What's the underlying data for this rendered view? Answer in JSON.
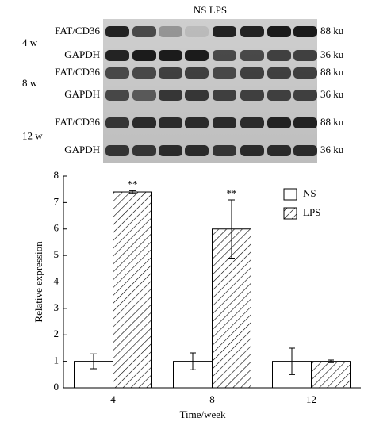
{
  "blot": {
    "header": "NS LPS",
    "groups": [
      {
        "label": "4 w",
        "rows": [
          {
            "name": "FAT/CD36",
            "size": "88 ku"
          },
          {
            "name": "GAPDH",
            "size": "36 ku"
          }
        ]
      },
      {
        "label": "8 w",
        "rows": [
          {
            "name": "FAT/CD36",
            "size": "88 ku"
          },
          {
            "name": "GAPDH",
            "size": "36 ku"
          }
        ]
      },
      {
        "label": "12 w",
        "rows": [
          {
            "name": "FAT/CD36",
            "size": "88 ku"
          },
          {
            "name": "GAPDH",
            "size": "36 ku"
          }
        ]
      }
    ]
  },
  "chart_data": {
    "type": "bar",
    "x_label": "Time/week",
    "y_label": "Relative expression",
    "categories": [
      "4",
      "8",
      "12"
    ],
    "series": [
      {
        "name": "NS",
        "color": "#ffffff",
        "values": [
          1,
          1,
          1
        ],
        "errors": [
          0.28,
          0.32,
          0.5
        ]
      },
      {
        "name": "LPS",
        "color": "#ffffff",
        "hatch": true,
        "values": [
          7.4,
          6.0,
          1.0
        ],
        "errors": [
          0.05,
          1.1,
          0.05
        ],
        "annotations": [
          "**",
          "**",
          null
        ]
      }
    ],
    "ylim": [
      0,
      8
    ],
    "yticks": [
      0,
      1,
      2,
      3,
      4,
      5,
      6,
      7,
      8
    ],
    "legend": "upper right"
  }
}
